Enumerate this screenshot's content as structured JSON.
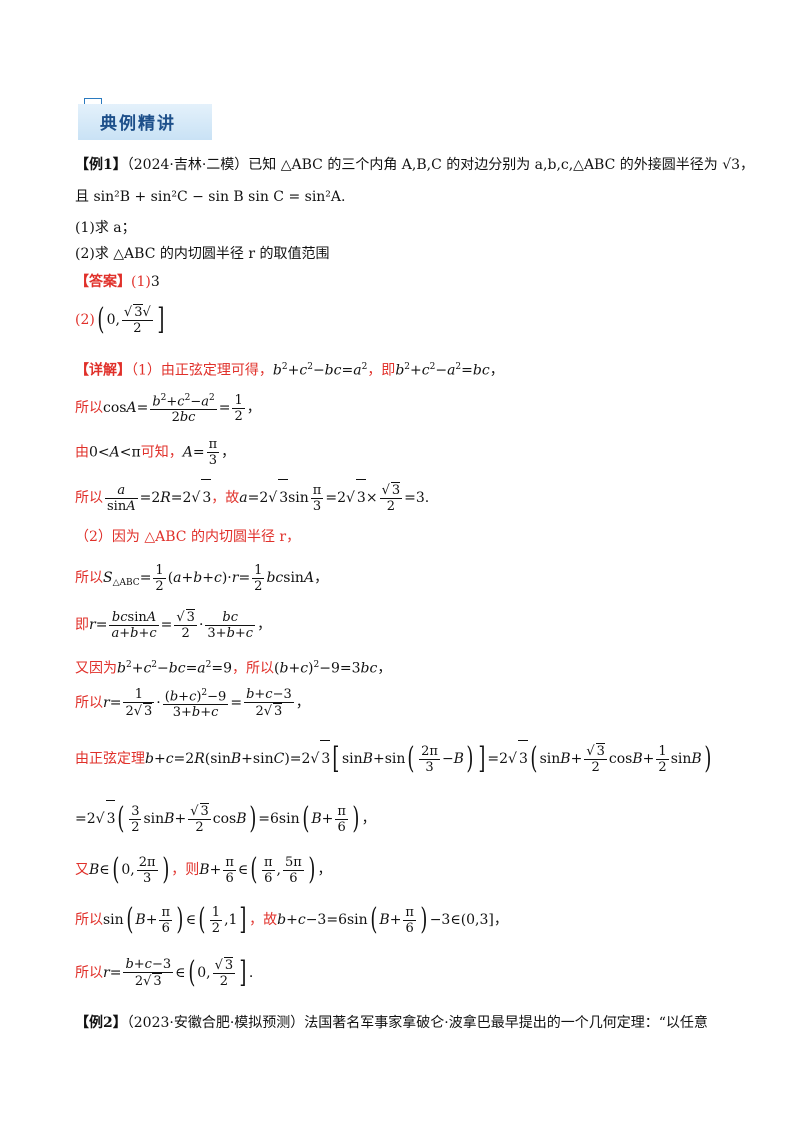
{
  "section_title": "典例精讲",
  "ex1": {
    "tag": "【例1】",
    "source": "（2024·吉林·二模）",
    "stem_1": "已知 △ABC 的三个内角 A,B,C 的对边分别为 a,b,c,△ABC 的外接圆半径为 √3，",
    "stem_2": "且 sin²B + sin²C − sin B sin C = sin²A.",
    "q1": "(1)求 a；",
    "q2": "(2)求 △ABC 的内切圆半径 r 的取值范围",
    "answer_tag": "【答案】",
    "answer_1_label": "(1)",
    "answer_1_value": "3",
    "answer_2_label": "(2)",
    "detail_tag": "【详解】",
    "d1_text_a": "（1）由正弦定理可得，",
    "d1_text_b": "，即",
    "d2_text": "所以",
    "d3_text_a": "由",
    "d3_text_b": "可知，",
    "d4_text_a": "所以",
    "d4_text_b": "，故",
    "d5_text": "（2）因为 △ABC 的内切圆半径 r，",
    "d6_text": "所以",
    "d7_text": "即",
    "d8_text_a": "又因为",
    "d8_text_b": "，所以",
    "d9_text": "所以",
    "d10_text": "由正弦定理",
    "d12_text_a": "又",
    "d12_text_b": "，则",
    "d13_text_a": "所以",
    "d13_text_b": "，故",
    "d14_text": "所以"
  },
  "ex2": {
    "tag": "【例2】",
    "source": "（2023·安徽合肥·模拟预测）",
    "stem": "法国著名军事家拿破仑·波拿巴最早提出的一个几何定理：“以任意"
  }
}
